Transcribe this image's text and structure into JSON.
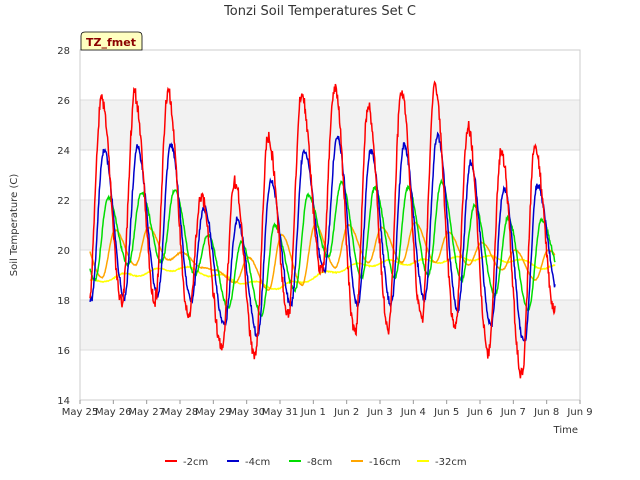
{
  "chart_data": {
    "type": "line",
    "title": "Tonzi Soil Temperatures Set C",
    "xlabel": "Time",
    "ylabel": "Soil Temperature (C)",
    "badge": "TZ_fmet",
    "ylim": [
      14,
      28
    ],
    "yticks": [
      14,
      16,
      18,
      20,
      22,
      24,
      26,
      28
    ],
    "xlim": [
      0,
      15
    ],
    "xticks": [
      0,
      1,
      2,
      3,
      4,
      5,
      6,
      7,
      8,
      9,
      10,
      11,
      12,
      13,
      14,
      15
    ],
    "xtick_labels": [
      "May 25",
      "May 26",
      "May 27",
      "May 28",
      "May 29",
      "May 30",
      "May 31",
      "Jun 1",
      "Jun 2",
      "Jun 3",
      "Jun 4",
      "Jun 5",
      "Jun 6",
      "Jun 7",
      "Jun 8",
      "Jun 9"
    ],
    "grid": true,
    "legend_position": "bottom",
    "day_sampling": {
      "start_day": 0.3,
      "end_day": 14.25
    },
    "series": [
      {
        "name": "-2cm",
        "color": "#ff0000",
        "min": [
          17.8,
          17.9,
          18.0,
          17.4,
          16.1,
          15.7,
          17.4,
          19.1,
          16.7,
          16.9,
          17.2,
          16.9,
          15.9,
          15.0,
          17.6
        ],
        "max": [
          26.0,
          26.2,
          26.3,
          22.2,
          22.7,
          24.5,
          26.2,
          26.5,
          25.7,
          26.3,
          26.6,
          24.9,
          24.0,
          24.1,
          24.1
        ],
        "peak_phase": 0.64,
        "min_phase": 0.25,
        "noise": 0.7
      },
      {
        "name": "-4cm",
        "color": "#0000cc",
        "min": [
          18.0,
          18.1,
          18.2,
          18.0,
          17.0,
          16.6,
          17.8,
          19.2,
          17.7,
          17.8,
          18.0,
          17.6,
          17.0,
          16.3,
          18.4
        ],
        "max": [
          24.0,
          24.1,
          24.2,
          21.7,
          21.2,
          22.8,
          24.0,
          24.5,
          24.0,
          24.2,
          24.6,
          23.5,
          22.5,
          22.6,
          22.6
        ],
        "peak_phase": 0.72,
        "min_phase": 0.33,
        "noise": 0.35
      },
      {
        "name": "-8cm",
        "color": "#00dd00",
        "min": [
          18.8,
          19.4,
          19.5,
          19.0,
          17.7,
          17.4,
          18.4,
          19.7,
          18.9,
          18.9,
          19.0,
          18.8,
          18.2,
          17.6,
          19.0
        ],
        "max": [
          22.1,
          22.3,
          22.4,
          20.6,
          20.3,
          21.0,
          22.2,
          22.7,
          22.5,
          22.5,
          22.7,
          21.8,
          21.3,
          21.2,
          20.2
        ],
        "peak_phase": 0.84,
        "min_phase": 0.45,
        "noise": 0.15
      },
      {
        "name": "-16cm",
        "color": "#ffa500",
        "min": [
          18.9,
          19.4,
          19.6,
          19.3,
          18.7,
          18.4,
          18.6,
          19.3,
          19.5,
          19.5,
          19.5,
          19.4,
          19.2,
          18.8,
          19.2
        ],
        "max": [
          20.5,
          20.8,
          20.9,
          19.9,
          19.2,
          19.7,
          20.6,
          21.0,
          21.0,
          20.9,
          21.1,
          20.7,
          20.3,
          20.0,
          20.0
        ],
        "peak_phase": 0.05,
        "min_phase": 0.66,
        "noise": 0.05
      },
      {
        "name": "-32cm",
        "color": "#ffff00",
        "levels": [
          18.6,
          18.9,
          19.1,
          19.3,
          19.0,
          18.7,
          18.5,
          18.9,
          19.3,
          19.5,
          19.5,
          19.6,
          19.7,
          19.6,
          19.3
        ],
        "amp": 0.1,
        "peak_phase": 0.3,
        "noise": 0.05
      }
    ]
  }
}
